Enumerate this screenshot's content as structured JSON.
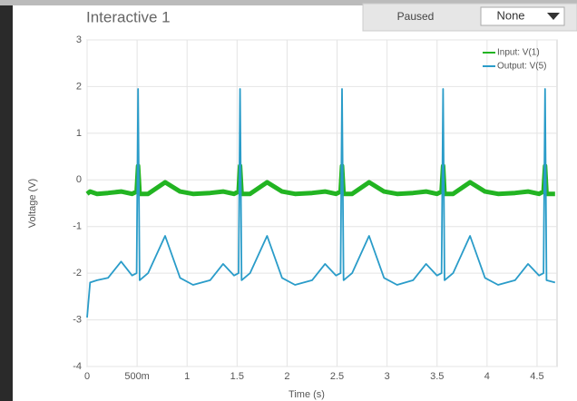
{
  "header": {
    "title": "Interactive 1",
    "status": "Paused",
    "dropdown": "None"
  },
  "chart_data": {
    "type": "line",
    "x_label": "Time (s)",
    "y_label": "Voltage (V)",
    "x": [
      0,
      0.03,
      0.1,
      0.21,
      0.34,
      0.45,
      0.495,
      0.51,
      0.525,
      0.61,
      0.78,
      0.93,
      1.06,
      1.23,
      1.36,
      1.47,
      1.515,
      1.53,
      1.545,
      1.63,
      1.8,
      1.95,
      2.08,
      2.25,
      2.38,
      2.49,
      2.535,
      2.55,
      2.565,
      2.65,
      2.82,
      2.97,
      3.1,
      3.26,
      3.39,
      3.5,
      3.545,
      3.56,
      3.575,
      3.66,
      3.83,
      3.98,
      4.11,
      4.28,
      4.41,
      4.52,
      4.565,
      4.58,
      4.595,
      4.68
    ],
    "series": [
      {
        "name": "Input: V(1)",
        "color": "#22b422",
        "values": [
          -0.3,
          -0.25,
          -0.3,
          -0.28,
          -0.25,
          -0.3,
          -0.25,
          0.3,
          -0.3,
          -0.3,
          -0.05,
          -0.25,
          -0.3,
          -0.28,
          -0.25,
          -0.3,
          -0.25,
          0.3,
          -0.3,
          -0.3,
          -0.05,
          -0.25,
          -0.3,
          -0.28,
          -0.25,
          -0.3,
          -0.25,
          0.3,
          -0.3,
          -0.3,
          -0.05,
          -0.25,
          -0.3,
          -0.28,
          -0.25,
          -0.3,
          -0.25,
          0.3,
          -0.3,
          -0.3,
          -0.05,
          -0.25,
          -0.3,
          -0.28,
          -0.25,
          -0.3,
          -0.25,
          0.3,
          -0.3,
          -0.3
        ]
      },
      {
        "name": "Output: V(5)",
        "color": "#2a9cc9",
        "values": [
          -2.95,
          -2.2,
          -2.15,
          -2.1,
          -1.75,
          -2.05,
          -2.0,
          1.95,
          -2.15,
          -2.0,
          -1.2,
          -2.1,
          -2.25,
          -2.15,
          -1.8,
          -2.05,
          -2.0,
          1.95,
          -2.15,
          -2.0,
          -1.2,
          -2.1,
          -2.25,
          -2.15,
          -1.8,
          -2.05,
          -2.0,
          1.95,
          -2.15,
          -2.0,
          -1.2,
          -2.1,
          -2.25,
          -2.15,
          -1.8,
          -2.05,
          -2.0,
          1.95,
          -2.15,
          -2.0,
          -1.2,
          -2.1,
          -2.25,
          -2.15,
          -1.8,
          -2.05,
          -2.0,
          1.95,
          -2.15,
          -2.2
        ]
      }
    ],
    "xlim": [
      0,
      4.7
    ],
    "ylim": [
      -4,
      3
    ],
    "xticks": [
      0,
      {
        "value": 0.5,
        "label": "500m"
      },
      1,
      1.5,
      2,
      2.5,
      3,
      3.5,
      4,
      4.5
    ],
    "yticks": [
      -4,
      -3,
      -2,
      -1,
      0,
      1,
      2,
      3
    ],
    "grid": true,
    "legend": "top-right"
  }
}
